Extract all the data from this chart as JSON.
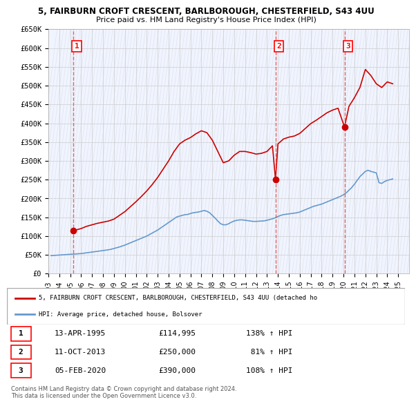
{
  "title_line1": "5, FAIRBURN CROFT CRESCENT, BARLBOROUGH, CHESTERFIELD, S43 4UU",
  "title_line2": "Price paid vs. HM Land Registry's House Price Index (HPI)",
  "ylim": [
    0,
    650000
  ],
  "yticks": [
    0,
    50000,
    100000,
    150000,
    200000,
    250000,
    300000,
    350000,
    400000,
    450000,
    500000,
    550000,
    600000,
    650000
  ],
  "ytick_labels": [
    "£0",
    "£50K",
    "£100K",
    "£150K",
    "£200K",
    "£250K",
    "£300K",
    "£350K",
    "£400K",
    "£450K",
    "£500K",
    "£550K",
    "£600K",
    "£650K"
  ],
  "xlim_start": 1993.0,
  "xlim_end": 2026.0,
  "xtick_years": [
    1993,
    1994,
    1995,
    1996,
    1997,
    1998,
    1999,
    2000,
    2001,
    2002,
    2003,
    2004,
    2005,
    2006,
    2007,
    2008,
    2009,
    2010,
    2011,
    2012,
    2013,
    2014,
    2015,
    2016,
    2017,
    2018,
    2019,
    2020,
    2021,
    2022,
    2023,
    2024,
    2025
  ],
  "sale_dates": [
    1995.28,
    2013.78,
    2020.09
  ],
  "sale_prices": [
    114995,
    250000,
    390000
  ],
  "sale_labels": [
    "1",
    "2",
    "3"
  ],
  "red_line_color": "#cc0000",
  "blue_line_color": "#6699cc",
  "marker_color": "#cc0000",
  "vline_color": "#dd4444",
  "hpi_color": "#6699cc",
  "background_plot": "#f0f4ff",
  "hatch_color": "#cccccc",
  "grid_color": "#dddddd",
  "legend_line1": "5, FAIRBURN CROFT CRESCENT, BARLBOROUGH, CHESTERFIELD, S43 4UU (detached ho",
  "legend_line2": "HPI: Average price, detached house, Bolsover",
  "table_data": [
    [
      "1",
      "13-APR-1995",
      "£114,995",
      "138% ↑ HPI"
    ],
    [
      "2",
      "11-OCT-2013",
      "£250,000",
      " 81% ↑ HPI"
    ],
    [
      "3",
      "05-FEB-2020",
      "£390,000",
      "108% ↑ HPI"
    ]
  ],
  "footer_text": "Contains HM Land Registry data © Crown copyright and database right 2024.\nThis data is licensed under the Open Government Licence v3.0.",
  "hpi_x": [
    1993.25,
    1993.5,
    1993.75,
    1994.0,
    1994.25,
    1994.5,
    1994.75,
    1995.0,
    1995.25,
    1995.5,
    1995.75,
    1996.0,
    1996.25,
    1996.5,
    1996.75,
    1997.0,
    1997.25,
    1997.5,
    1997.75,
    1998.0,
    1998.25,
    1998.5,
    1998.75,
    1999.0,
    1999.25,
    1999.5,
    1999.75,
    2000.0,
    2000.25,
    2000.5,
    2000.75,
    2001.0,
    2001.25,
    2001.5,
    2001.75,
    2002.0,
    2002.25,
    2002.5,
    2002.75,
    2003.0,
    2003.25,
    2003.5,
    2003.75,
    2004.0,
    2004.25,
    2004.5,
    2004.75,
    2005.0,
    2005.25,
    2005.5,
    2005.75,
    2006.0,
    2006.25,
    2006.5,
    2006.75,
    2007.0,
    2007.25,
    2007.5,
    2007.75,
    2008.0,
    2008.25,
    2008.5,
    2008.75,
    2009.0,
    2009.25,
    2009.5,
    2009.75,
    2010.0,
    2010.25,
    2010.5,
    2010.75,
    2011.0,
    2011.25,
    2011.5,
    2011.75,
    2012.0,
    2012.25,
    2012.5,
    2012.75,
    2013.0,
    2013.25,
    2013.5,
    2013.75,
    2014.0,
    2014.25,
    2014.5,
    2014.75,
    2015.0,
    2015.25,
    2015.5,
    2015.75,
    2016.0,
    2016.25,
    2016.5,
    2016.75,
    2017.0,
    2017.25,
    2017.5,
    2017.75,
    2018.0,
    2018.25,
    2018.5,
    2018.75,
    2019.0,
    2019.25,
    2019.5,
    2019.75,
    2020.0,
    2020.25,
    2020.5,
    2020.75,
    2021.0,
    2021.25,
    2021.5,
    2021.75,
    2022.0,
    2022.25,
    2022.5,
    2022.75,
    2023.0,
    2023.25,
    2023.5,
    2023.75,
    2024.0,
    2024.25,
    2024.5
  ],
  "hpi_y": [
    48000,
    48500,
    49000,
    49500,
    50000,
    50500,
    51000,
    51500,
    52000,
    52500,
    53000,
    53500,
    54500,
    55500,
    56500,
    57500,
    58500,
    59500,
    60500,
    61500,
    62500,
    63500,
    65000,
    67000,
    69000,
    71000,
    73500,
    76000,
    79000,
    82000,
    85000,
    88000,
    91000,
    94000,
    97000,
    100000,
    104000,
    108000,
    112000,
    116000,
    121000,
    126000,
    131000,
    136000,
    141000,
    146000,
    151000,
    153000,
    155000,
    157000,
    157500,
    160000,
    162000,
    163000,
    164000,
    166000,
    168000,
    166000,
    162000,
    155000,
    148000,
    140000,
    133000,
    130000,
    130000,
    133000,
    137000,
    140000,
    142000,
    143000,
    143000,
    142000,
    141000,
    140000,
    139000,
    139000,
    139500,
    140000,
    140500,
    142000,
    144000,
    146000,
    148500,
    152000,
    155000,
    157000,
    158000,
    159000,
    160000,
    161000,
    162000,
    164000,
    167000,
    170000,
    173000,
    176000,
    179000,
    181000,
    183000,
    185000,
    188000,
    191000,
    194000,
    197000,
    200000,
    203000,
    206000,
    210000,
    215000,
    222000,
    229000,
    238000,
    248000,
    258000,
    265000,
    272000,
    275000,
    272000,
    270000,
    268000,
    242000,
    240000,
    245000,
    248000,
    250000,
    252000
  ],
  "price_line_x": [
    1995.28,
    1995.5,
    1996.0,
    1996.5,
    1997.0,
    1997.5,
    1998.0,
    1998.5,
    1999.0,
    1999.5,
    2000.0,
    2000.5,
    2001.0,
    2001.5,
    2002.0,
    2002.5,
    2003.0,
    2003.5,
    2004.0,
    2004.5,
    2005.0,
    2005.5,
    2006.0,
    2006.5,
    2007.0,
    2007.5,
    2008.0,
    2008.5,
    2009.0,
    2009.5,
    2010.0,
    2010.5,
    2011.0,
    2011.5,
    2012.0,
    2012.5,
    2013.0,
    2013.5,
    2013.78,
    2014.0,
    2014.5,
    2015.0,
    2015.5,
    2016.0,
    2016.5,
    2017.0,
    2017.5,
    2018.0,
    2018.5,
    2019.0,
    2019.5,
    2020.09,
    2020.5,
    2021.0,
    2021.5,
    2022.0,
    2022.5,
    2023.0,
    2023.5,
    2024.0,
    2024.5
  ],
  "price_line_y": [
    114995,
    116000,
    120000,
    126000,
    130000,
    134000,
    137000,
    140000,
    145000,
    155000,
    165000,
    178000,
    191000,
    205000,
    220000,
    237000,
    256000,
    278000,
    300000,
    325000,
    345000,
    355000,
    362000,
    372000,
    380000,
    375000,
    355000,
    325000,
    295000,
    300000,
    315000,
    325000,
    325000,
    322000,
    318000,
    320000,
    325000,
    340000,
    250000,
    345000,
    358000,
    363000,
    366000,
    373000,
    386000,
    399000,
    408000,
    418000,
    428000,
    435000,
    440000,
    390000,
    445000,
    468000,
    495000,
    543000,
    527000,
    505000,
    495000,
    510000,
    505000
  ]
}
